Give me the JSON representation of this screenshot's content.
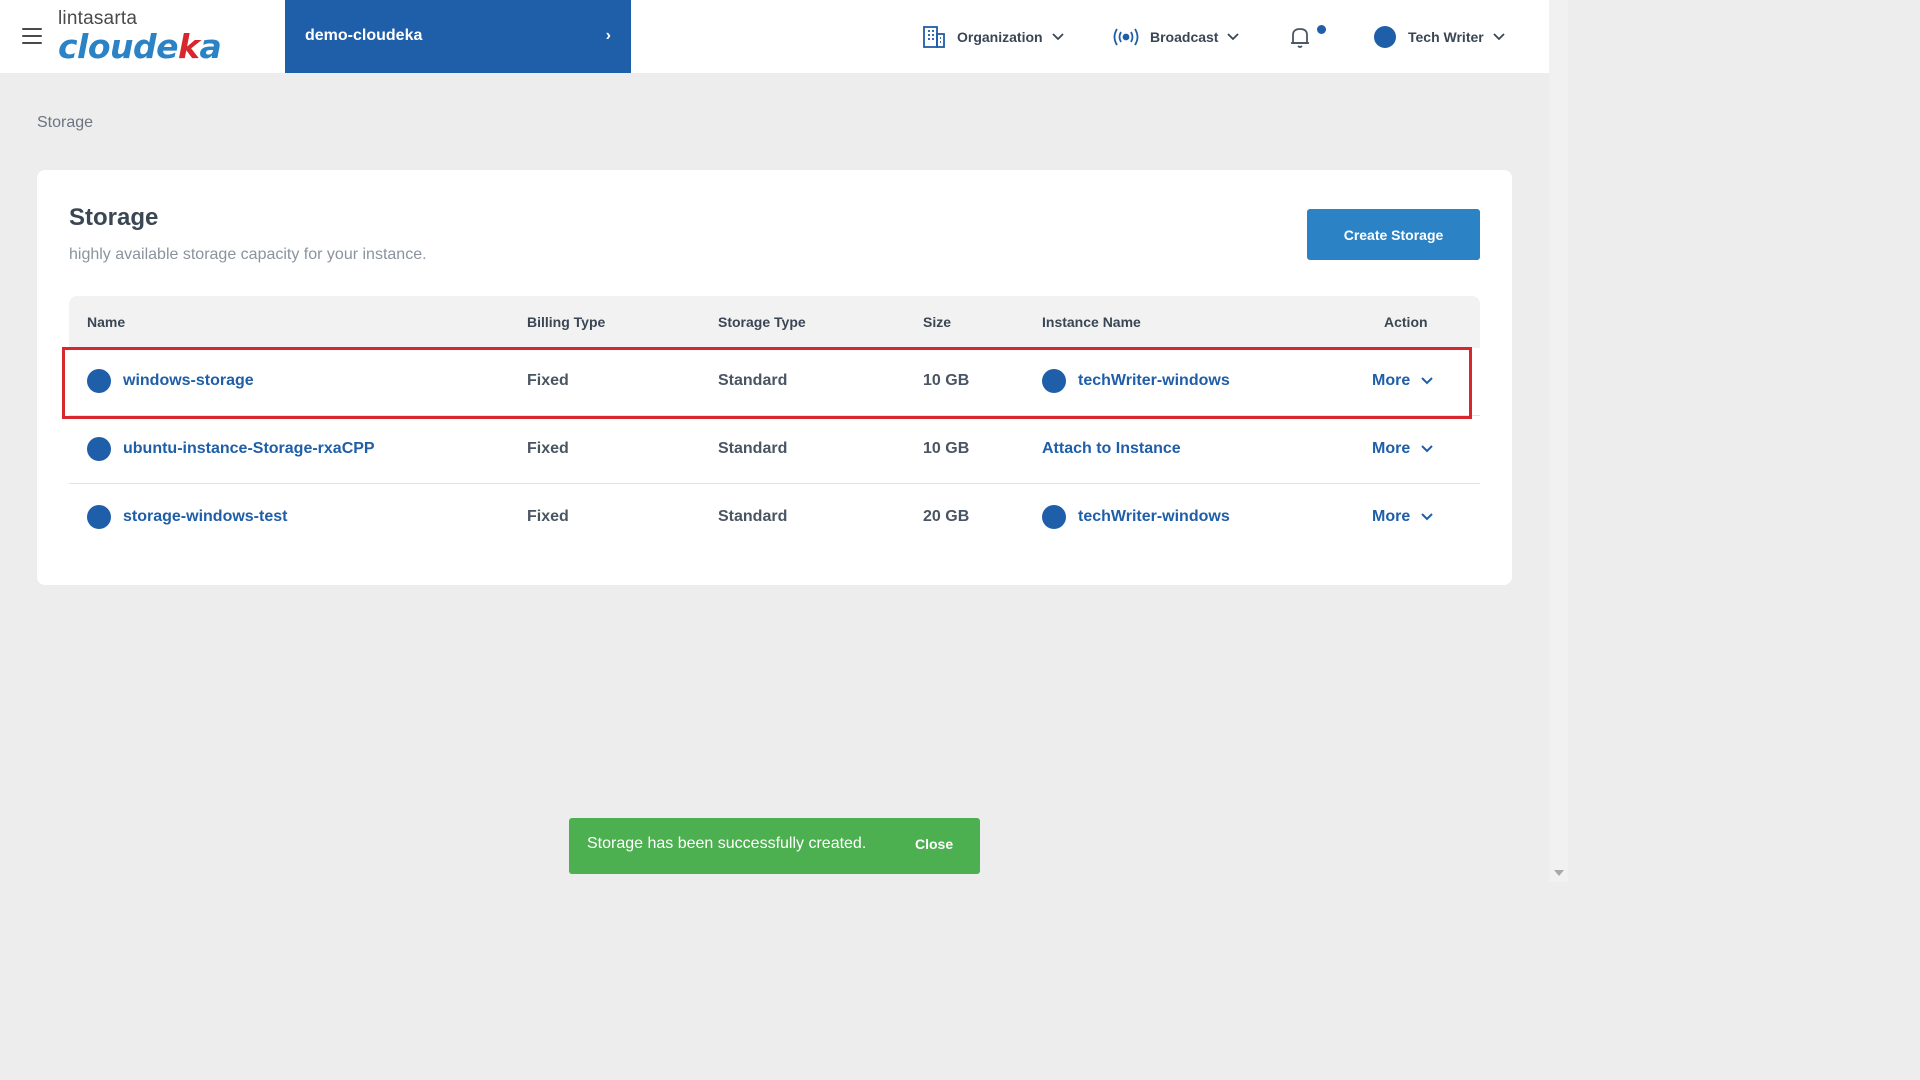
{
  "header": {
    "logo_top": "lintasarta",
    "logo_main_a": "cloude",
    "logo_main_b": "k",
    "logo_main_c": "a",
    "project_name": "demo-cloudeka",
    "organization_label": "Organization",
    "broadcast_label": "Broadcast",
    "user_name": "Tech Writer"
  },
  "breadcrumb": "Storage",
  "page": {
    "title": "Storage",
    "subtitle": "highly available storage capacity for your instance.",
    "create_button": "Create Storage"
  },
  "table": {
    "columns": [
      "Name",
      "Billing Type",
      "Storage Type",
      "Size",
      "Instance Name",
      "Action"
    ],
    "rows": [
      {
        "name": "windows-storage",
        "billing": "Fixed",
        "storage_type": "Standard",
        "size": "10 GB",
        "instance": "techWriter-windows",
        "action": "More"
      },
      {
        "name": "ubuntu-instance-Storage-rxaCPP",
        "billing": "Fixed",
        "storage_type": "Standard",
        "size": "10 GB",
        "instance": "Attach to Instance",
        "action": "More"
      },
      {
        "name": "storage-windows-test",
        "billing": "Fixed",
        "storage_type": "Standard",
        "size": "20 GB",
        "instance": "techWriter-windows",
        "action": "More"
      }
    ]
  },
  "toast": {
    "message": "Storage has been successfully created.",
    "close_label": "Close"
  },
  "colors": {
    "primary": "#1f5ea8",
    "accent": "#2b83c6",
    "success": "#4caf50",
    "highlight": "#d8262e"
  }
}
